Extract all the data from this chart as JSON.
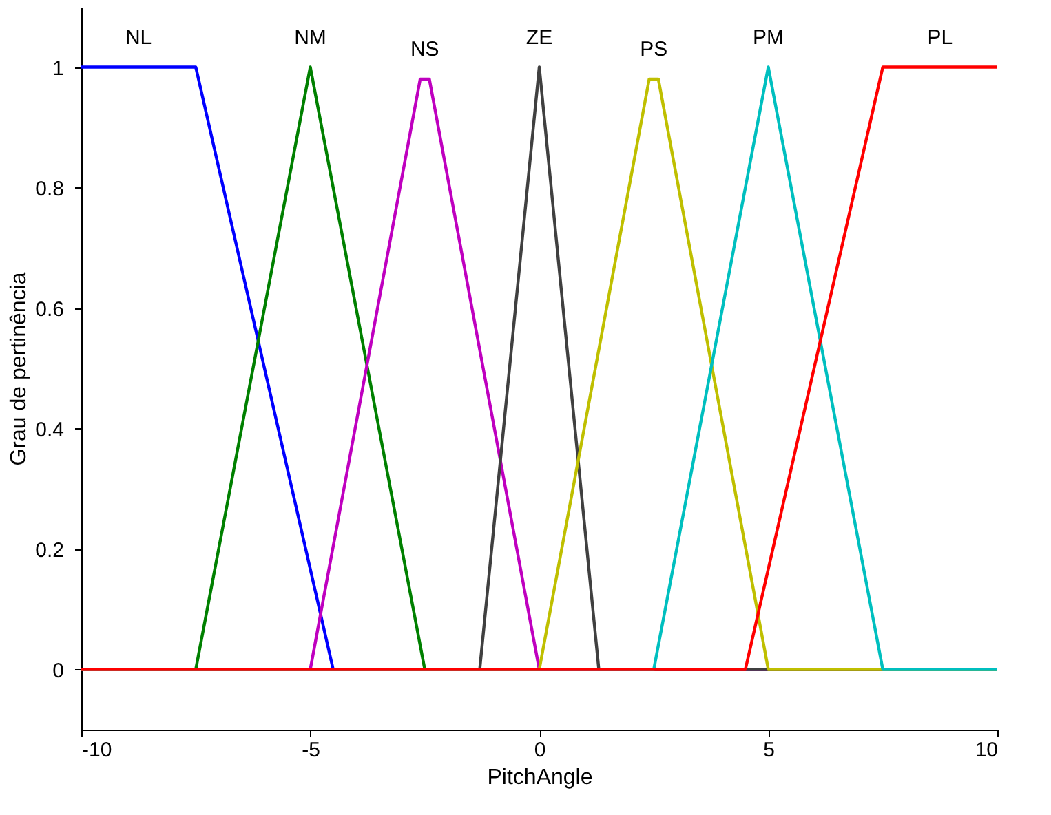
{
  "chart_data": {
    "type": "line",
    "xlabel": "PitchAngle",
    "ylabel": "Grau de pertinência",
    "xlim": [
      -10,
      10
    ],
    "ylim": [
      -0.1,
      1.1
    ],
    "xticks": [
      -10,
      -5,
      0,
      5,
      10
    ],
    "yticks": [
      0,
      0.2,
      0.4,
      0.6,
      0.8,
      1
    ],
    "grid": false,
    "marker": "none",
    "line_style": "solid",
    "series": [
      {
        "name": "NL",
        "color": "#0000ff",
        "x": [
          -10,
          -7.5,
          -4.5,
          10
        ],
        "values": [
          1,
          1,
          0,
          0
        ]
      },
      {
        "name": "NM",
        "color": "#008000",
        "x": [
          -10,
          -7.5,
          -5,
          -2.5,
          10
        ],
        "values": [
          0,
          0,
          1,
          0,
          0
        ]
      },
      {
        "name": "NS",
        "color": "#bf00bf",
        "x": [
          -10,
          -5,
          -2.6,
          -2.4,
          0,
          10
        ],
        "values": [
          0,
          0,
          0.98,
          0.98,
          0,
          0
        ]
      },
      {
        "name": "ZE",
        "color": "#404040",
        "x": [
          -10,
          -1.3,
          0,
          1.3,
          10
        ],
        "values": [
          0,
          0,
          1,
          0,
          0
        ]
      },
      {
        "name": "PS",
        "color": "#bfbf00",
        "x": [
          -10,
          0,
          2.4,
          2.6,
          5,
          10
        ],
        "values": [
          0,
          0,
          0.98,
          0.98,
          0,
          0
        ]
      },
      {
        "name": "PM",
        "color": "#00bfbf",
        "x": [
          -10,
          2.5,
          5,
          7.5,
          10
        ],
        "values": [
          0,
          0,
          1,
          0,
          0
        ]
      },
      {
        "name": "PL",
        "color": "#ff0000",
        "x": [
          -10,
          4.5,
          7.5,
          10
        ],
        "values": [
          0,
          0,
          1,
          1
        ]
      }
    ]
  }
}
